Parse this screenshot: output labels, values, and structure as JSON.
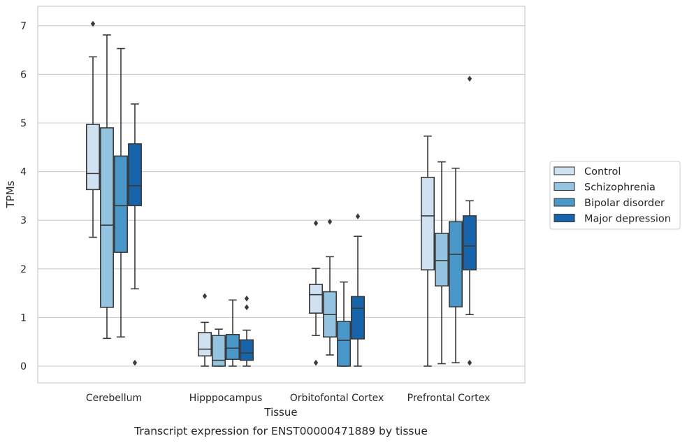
{
  "chart_data": {
    "type": "box",
    "caption": "Transcript expression for ENST00000471889 by tissue",
    "xlabel": "Tissue",
    "ylabel": "TPMs",
    "ylim": [
      -0.35,
      7.4
    ],
    "yticks": [
      0,
      1,
      2,
      3,
      4,
      5,
      6,
      7
    ],
    "grid": "horizontal",
    "legend_position": "center-right outside",
    "categories": [
      "Cerebellum",
      "Hipppocampus",
      "Orbitofontal Cortex",
      "Prefrontal Cortex"
    ],
    "series": [
      {
        "name": "Control",
        "color": "#d0e1f2",
        "boxes": [
          {
            "whislo": 2.65,
            "q1": 3.63,
            "med": 3.96,
            "q3": 4.97,
            "whishi": 6.36,
            "fliers": [
              7.04
            ]
          },
          {
            "whislo": 0.0,
            "q1": 0.21,
            "med": 0.35,
            "q3": 0.69,
            "whishi": 0.9,
            "fliers": [
              1.44
            ]
          },
          {
            "whislo": 0.63,
            "q1": 1.09,
            "med": 1.47,
            "q3": 1.68,
            "whishi": 2.01,
            "fliers": [
              2.94,
              0.07
            ]
          },
          {
            "whislo": 0.0,
            "q1": 1.98,
            "med": 3.09,
            "q3": 3.88,
            "whishi": 4.73,
            "fliers": []
          }
        ]
      },
      {
        "name": "Schizophrenia",
        "color": "#94c4df",
        "boxes": [
          {
            "whislo": 0.57,
            "q1": 1.21,
            "med": 2.9,
            "q3": 4.9,
            "whishi": 6.81,
            "fliers": []
          },
          {
            "whislo": 0.0,
            "q1": 0.0,
            "med": 0.12,
            "q3": 0.63,
            "whishi": 0.76,
            "fliers": []
          },
          {
            "whislo": 0.23,
            "q1": 0.6,
            "med": 1.06,
            "q3": 1.53,
            "whishi": 2.25,
            "fliers": [
              2.97
            ]
          },
          {
            "whislo": 0.05,
            "q1": 1.65,
            "med": 2.17,
            "q3": 2.73,
            "whishi": 4.2,
            "fliers": []
          }
        ]
      },
      {
        "name": "Bipolar disorder",
        "color": "#4a98c9",
        "boxes": [
          {
            "whislo": 0.6,
            "q1": 2.34,
            "med": 3.3,
            "q3": 4.32,
            "whishi": 6.53,
            "fliers": []
          },
          {
            "whislo": 0.0,
            "q1": 0.14,
            "med": 0.37,
            "q3": 0.65,
            "whishi": 1.36,
            "fliers": []
          },
          {
            "whislo": 0.0,
            "q1": 0.0,
            "med": 0.53,
            "q3": 0.92,
            "whishi": 1.73,
            "fliers": []
          },
          {
            "whislo": 0.07,
            "q1": 1.22,
            "med": 2.3,
            "q3": 2.97,
            "whishi": 4.07,
            "fliers": []
          }
        ]
      },
      {
        "name": "Major depression",
        "color": "#1764ab",
        "boxes": [
          {
            "whislo": 1.59,
            "q1": 3.3,
            "med": 3.71,
            "q3": 4.57,
            "whishi": 5.39,
            "fliers": [
              0.07
            ]
          },
          {
            "whislo": 0.0,
            "q1": 0.12,
            "med": 0.27,
            "q3": 0.54,
            "whishi": 0.74,
            "fliers": [
              1.39,
              1.21
            ]
          },
          {
            "whislo": 0.0,
            "q1": 0.56,
            "med": 1.19,
            "q3": 1.43,
            "whishi": 2.67,
            "fliers": [
              3.08
            ]
          },
          {
            "whislo": 1.06,
            "q1": 1.98,
            "med": 2.47,
            "q3": 3.09,
            "whishi": 3.4,
            "fliers": [
              5.91,
              0.07
            ]
          }
        ]
      }
    ]
  }
}
